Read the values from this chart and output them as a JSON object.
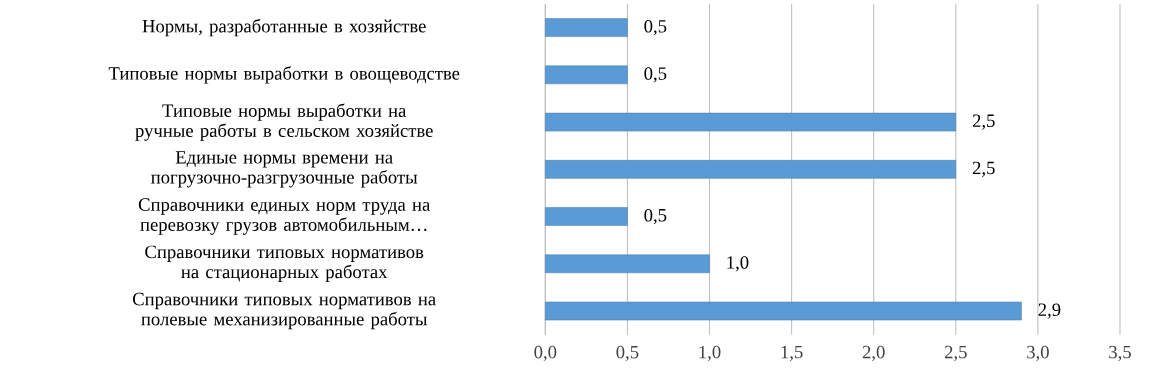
{
  "chart_data": {
    "type": "bar",
    "orientation": "horizontal",
    "categories": [
      "Нормы, разработанные в хозяйстве",
      "Типовые  нормы выработки в овощеводстве",
      "Типовые  нормы выработки на ручные работы в  сельском хозяйстве",
      "Единые  нормы времени на погрузочно-разгрузочные работы",
      "Справочники единых норм труда на перевозку грузов автомобильным…",
      "Справочники типовых нормативов на стационарных работах",
      "Справочники типовых нормативов на полевые механизированные работы"
    ],
    "values": [
      0.5,
      0.5,
      2.5,
      2.5,
      0.5,
      1.0,
      2.9
    ],
    "value_labels": [
      "0,5",
      "0,5",
      "2,5",
      "2,5",
      "0,5",
      "1,0",
      "2,9"
    ],
    "color": "#5b9bd5",
    "xlim": [
      0,
      3.5
    ],
    "xticks": [
      {
        "value": 0,
        "label": "0,0"
      },
      {
        "value": 0.5,
        "label": "0,5"
      },
      {
        "value": 1,
        "label": "1,0"
      },
      {
        "value": 1.5,
        "label": "1,5"
      },
      {
        "value": 2,
        "label": "2,0"
      },
      {
        "value": 2.5,
        "label": "2,5"
      },
      {
        "value": 3,
        "label": "3,0"
      },
      {
        "value": 3.5,
        "label": "3,5"
      }
    ],
    "grid": "x"
  }
}
